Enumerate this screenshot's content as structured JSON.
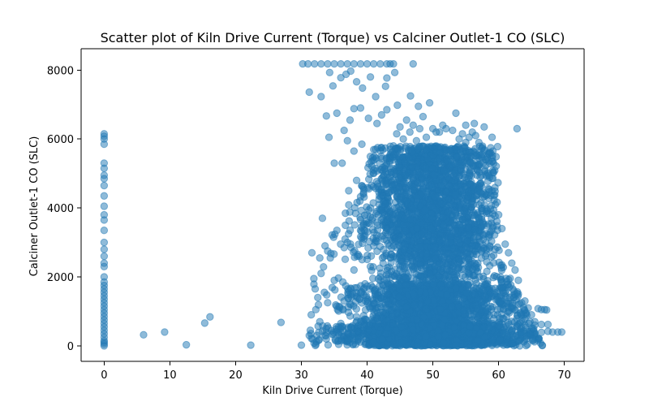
{
  "chart_data": {
    "type": "scatter",
    "title": "Scatter plot of Kiln Drive Current (Torque) vs Calciner Outlet-1 CO (SLC)",
    "xlabel": "Kiln Drive Current (Torque)",
    "ylabel": "Calciner Outlet-1 CO (SLC)",
    "xlim": [
      -3.5,
      73.0
    ],
    "ylim": [
      -450,
      8620
    ],
    "xticks": [
      0,
      10,
      20,
      30,
      40,
      50,
      60,
      70
    ],
    "yticks": [
      0,
      2000,
      4000,
      6000,
      8000
    ],
    "grid": false,
    "legend": "none",
    "point_color": "#1f77b4",
    "series": [
      {
        "values": [
          [
            0,
            6150
          ],
          [
            0,
            6080
          ],
          [
            0,
            6000
          ],
          [
            0,
            5850
          ],
          [
            0,
            5300
          ],
          [
            0,
            5150
          ],
          [
            0,
            4950
          ],
          [
            0,
            4850
          ],
          [
            0,
            4650
          ],
          [
            0,
            4350
          ],
          [
            0,
            4050
          ],
          [
            0,
            3800
          ],
          [
            0,
            3650
          ],
          [
            0,
            3350
          ],
          [
            0,
            3000
          ],
          [
            0,
            2800
          ],
          [
            0,
            2600
          ],
          [
            0,
            2400
          ],
          [
            0,
            2300
          ],
          [
            0,
            2000
          ],
          [
            0,
            1850
          ],
          [
            0,
            1750
          ],
          [
            0,
            1650
          ],
          [
            0,
            1550
          ],
          [
            0,
            1450
          ],
          [
            0,
            1350
          ],
          [
            0,
            1250
          ],
          [
            0,
            1150
          ],
          [
            0,
            1050
          ],
          [
            0,
            950
          ],
          [
            0,
            850
          ],
          [
            0,
            750
          ],
          [
            0,
            650
          ],
          [
            0,
            550
          ],
          [
            0,
            450
          ],
          [
            0,
            350
          ],
          [
            0,
            250
          ],
          [
            0,
            150
          ],
          [
            0,
            100
          ],
          [
            0,
            50
          ],
          [
            0,
            0
          ],
          [
            6,
            320
          ],
          [
            9.2,
            400
          ],
          [
            12.5,
            30
          ],
          [
            15.3,
            660
          ],
          [
            16.1,
            840
          ],
          [
            22.3,
            20
          ],
          [
            26.9,
            680
          ],
          [
            30,
            20
          ],
          [
            30.2,
            8180
          ],
          [
            31.0,
            8180
          ],
          [
            32.0,
            8180
          ],
          [
            33.0,
            8180
          ],
          [
            34.0,
            8180
          ],
          [
            35.0,
            8180
          ],
          [
            36.0,
            8180
          ],
          [
            37.0,
            8180
          ],
          [
            38.0,
            8180
          ],
          [
            39.0,
            8180
          ],
          [
            40.0,
            8180
          ],
          [
            41.0,
            8180
          ],
          [
            42.0,
            8180
          ],
          [
            43.0,
            8180
          ],
          [
            43.5,
            8180
          ],
          [
            44.0,
            8180
          ],
          [
            47.0,
            8180
          ],
          [
            34.3,
            7930
          ],
          [
            34.8,
            7540
          ],
          [
            36.0,
            7780
          ],
          [
            36.8,
            7880
          ],
          [
            37.5,
            7970
          ],
          [
            38.4,
            7660
          ],
          [
            39.3,
            7480
          ],
          [
            40.5,
            7800
          ],
          [
            41.3,
            7230
          ],
          [
            42.8,
            7530
          ],
          [
            43.0,
            7770
          ],
          [
            44.2,
            7930
          ],
          [
            44.6,
            6980
          ],
          [
            46.6,
            7250
          ],
          [
            47.8,
            6950
          ],
          [
            49.5,
            7050
          ],
          [
            31.2,
            7360
          ],
          [
            33.0,
            7230
          ],
          [
            33.8,
            6670
          ],
          [
            35.4,
            6750
          ],
          [
            36.5,
            6250
          ],
          [
            37.4,
            6550
          ],
          [
            38.0,
            6880
          ],
          [
            39.0,
            6900
          ],
          [
            40.2,
            6600
          ],
          [
            41.5,
            6450
          ],
          [
            42.2,
            6700
          ],
          [
            43.0,
            6850
          ],
          [
            45.0,
            6350
          ],
          [
            46.0,
            6550
          ],
          [
            47.0,
            6400
          ],
          [
            48.5,
            6650
          ],
          [
            50.0,
            6300
          ],
          [
            51.0,
            6200
          ],
          [
            53.5,
            6750
          ],
          [
            55.0,
            6400
          ],
          [
            56.3,
            6450
          ],
          [
            57.8,
            6350
          ],
          [
            59.0,
            6050
          ],
          [
            62.8,
            6300
          ],
          [
            34.2,
            6050
          ],
          [
            35.0,
            5300
          ],
          [
            36.2,
            5300
          ],
          [
            37.0,
            5950
          ],
          [
            38.0,
            5650
          ],
          [
            39.2,
            5850
          ],
          [
            40.6,
            5350
          ],
          [
            41.6,
            5750
          ],
          [
            37.2,
            4500
          ],
          [
            38.4,
            4800
          ],
          [
            38.9,
            4200
          ],
          [
            39.4,
            4600
          ],
          [
            33.2,
            3700
          ],
          [
            33.6,
            2900
          ],
          [
            34.0,
            2750
          ],
          [
            34.4,
            2550
          ],
          [
            34.9,
            3150
          ],
          [
            35.4,
            3350
          ],
          [
            36.5,
            2850
          ],
          [
            37.0,
            3000
          ],
          [
            31.6,
            2700
          ],
          [
            31.9,
            1950
          ],
          [
            32.1,
            1650
          ],
          [
            32.8,
            2550
          ],
          [
            33.0,
            2100
          ],
          [
            32.5,
            1400
          ],
          [
            31.2,
            300
          ],
          [
            31.5,
            900
          ],
          [
            32.2,
            1050
          ],
          [
            32.8,
            700
          ],
          [
            33.5,
            1550
          ],
          [
            34.0,
            1250
          ],
          [
            35.0,
            1900
          ],
          [
            35.5,
            1050
          ],
          [
            36.0,
            650
          ],
          [
            36.5,
            1300
          ],
          [
            37.5,
            1650
          ],
          [
            38.0,
            2200
          ],
          [
            38.5,
            2600
          ],
          [
            39.0,
            3350
          ],
          [
            39.5,
            3100
          ],
          [
            40.0,
            3800
          ],
          [
            40.5,
            4000
          ],
          [
            40.5,
            2300
          ],
          [
            41.0,
            2900
          ],
          [
            41.0,
            5100
          ],
          [
            41.8,
            4550
          ],
          [
            42.0,
            2000
          ],
          [
            42.5,
            4200
          ],
          [
            63.0,
            1500
          ],
          [
            63.5,
            1250
          ],
          [
            64.0,
            1300
          ],
          [
            64.5,
            1100
          ],
          [
            65.0,
            900
          ],
          [
            65.5,
            700
          ],
          [
            66.0,
            1080
          ],
          [
            66.5,
            1050
          ],
          [
            67.0,
            1050
          ],
          [
            67.3,
            1040
          ],
          [
            64.0,
            600
          ],
          [
            65.5,
            600
          ],
          [
            66.5,
            620
          ],
          [
            67.5,
            620
          ],
          [
            63.3,
            430
          ],
          [
            64.5,
            410
          ],
          [
            65.5,
            380
          ],
          [
            66.5,
            390
          ],
          [
            67.5,
            420
          ],
          [
            68.2,
            400
          ],
          [
            69.0,
            400
          ],
          [
            69.6,
            400
          ],
          [
            62.0,
            2400
          ],
          [
            62.5,
            2200
          ],
          [
            63.0,
            1900
          ],
          [
            61.5,
            2700
          ],
          [
            61.0,
            2950
          ],
          [
            60.5,
            3400
          ],
          [
            60.0,
            3800
          ],
          [
            59.5,
            4100
          ],
          [
            59.0,
            4500
          ],
          [
            58.5,
            4950
          ],
          [
            58.0,
            5400
          ],
          [
            57.5,
            5750
          ],
          [
            57.0,
            5900
          ],
          [
            56.5,
            6100
          ],
          [
            56.0,
            6200
          ],
          [
            55.5,
            6050
          ],
          [
            55.0,
            5900
          ],
          [
            54.5,
            6150
          ],
          [
            54.0,
            6000
          ],
          [
            53.0,
            6250
          ],
          [
            52.0,
            6300
          ],
          [
            51.5,
            6400
          ],
          [
            50.5,
            6200
          ],
          [
            49.0,
            6050
          ],
          [
            48.0,
            6300
          ],
          [
            47.5,
            5950
          ],
          [
            46.5,
            6200
          ],
          [
            45.5,
            6000
          ],
          [
            44.5,
            6150
          ],
          [
            44.0,
            5800
          ],
          [
            43.5,
            5550
          ],
          [
            43.0,
            5300
          ],
          [
            42.8,
            5050
          ],
          [
            42.4,
            4700
          ]
        ]
      }
    ]
  }
}
